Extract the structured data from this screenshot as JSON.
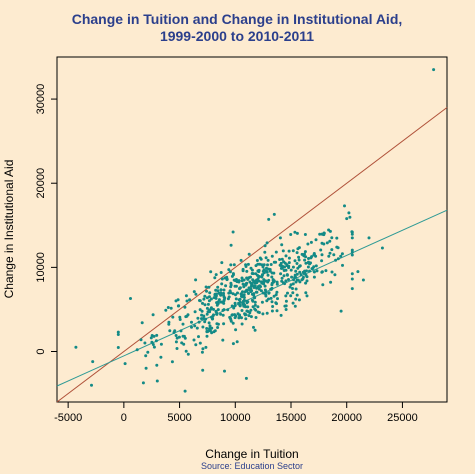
{
  "colors": {
    "background": "#fdebd0",
    "title": "#2b3f8c",
    "points": "#138a86",
    "fit_line": "#2e9a95",
    "equality_line": "#b0523a",
    "source": "#2b3f8c"
  },
  "chart_data": {
    "type": "scatter",
    "title_line1": "Change in Tuition and Change in Institutional Aid,",
    "title_line2": "1999-2000 to 2010-2011",
    "xlabel": "Change in Tuition",
    "ylabel": "Change in Institutional Aid",
    "source": "Source: Education Sector",
    "xlim": [
      -6000,
      29000
    ],
    "ylim": [
      -6000,
      35000
    ],
    "x_ticks": [
      -5000,
      0,
      5000,
      10000,
      15000,
      20000,
      25000
    ],
    "x_tick_labels": [
      "-5000",
      "0",
      "5000",
      "10000",
      "15000",
      "20000",
      "25000"
    ],
    "y_ticks": [
      0,
      10000,
      20000,
      30000
    ],
    "y_tick_labels": [
      "0",
      "10000",
      "20000",
      "30000"
    ],
    "grid": false,
    "lines": [
      {
        "kind": "equality",
        "x": [
          -6000,
          29000
        ],
        "y": [
          -6000,
          29000
        ]
      },
      {
        "kind": "fit",
        "x": [
          -6000,
          29000
        ],
        "y": [
          -4100,
          16800
        ]
      }
    ],
    "cluster": {
      "count": 620,
      "x_mean": 11500,
      "x_sd": 4300,
      "slope": 0.6,
      "intercept": 300,
      "resid_sd": 2000
    },
    "outliers": [
      [
        27800,
        33500
      ],
      [
        -4300,
        500
      ],
      [
        -2800,
        -1200
      ],
      [
        -2900,
        -4000
      ],
      [
        600,
        6300
      ],
      [
        5500,
        -4700
      ],
      [
        11000,
        -3200
      ],
      [
        9800,
        14200
      ],
      [
        13000,
        15700
      ],
      [
        13500,
        16300
      ],
      [
        19800,
        17300
      ],
      [
        20000,
        15800
      ],
      [
        22000,
        13500
      ],
      [
        23200,
        12300
      ],
      [
        21000,
        9500
      ],
      [
        21500,
        8500
      ],
      [
        19500,
        4800
      ],
      [
        2000,
        -2000
      ],
      [
        3000,
        -3500
      ],
      [
        1200,
        200
      ]
    ]
  }
}
